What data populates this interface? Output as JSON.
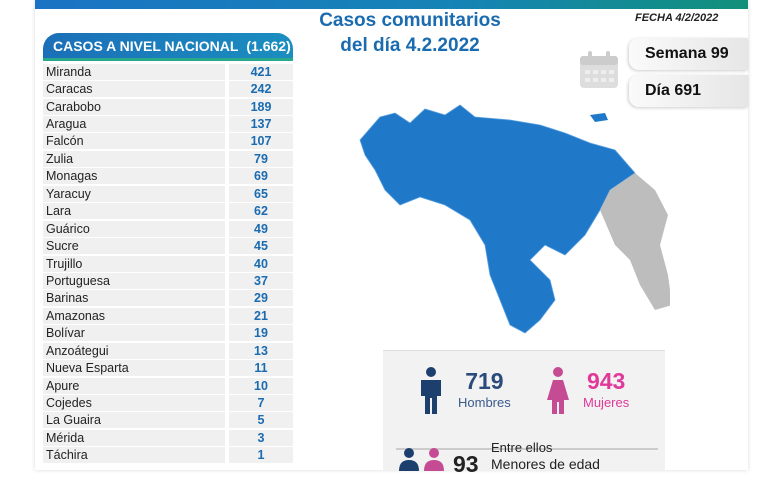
{
  "table": {
    "title": "CASOS A NIVEL NACIONAL",
    "total": "(1.662)",
    "rows": [
      [
        "Miranda",
        "421"
      ],
      [
        "Caracas",
        "242"
      ],
      [
        "Carabobo",
        "189"
      ],
      [
        "Aragua",
        "137"
      ],
      [
        "Falcón",
        "107"
      ],
      [
        "Zulia",
        "79"
      ],
      [
        "Monagas",
        "69"
      ],
      [
        "Yaracuy",
        "65"
      ],
      [
        "Lara",
        "62"
      ],
      [
        "Guárico",
        "49"
      ],
      [
        "Sucre",
        "45"
      ],
      [
        "Trujillo",
        "40"
      ],
      [
        "Portuguesa",
        "37"
      ],
      [
        "Barinas",
        "29"
      ],
      [
        "Amazonas",
        "21"
      ],
      [
        "Bolívar",
        "19"
      ],
      [
        "Anzoátegui",
        "13"
      ],
      [
        "Nueva Esparta",
        "11"
      ],
      [
        "Apure",
        "10"
      ],
      [
        "Cojedes",
        "7"
      ],
      [
        "La Guaira",
        "5"
      ],
      [
        "Mérida",
        "3"
      ],
      [
        "Táchira",
        "1"
      ]
    ]
  },
  "title": {
    "line1": "Casos comunitarios",
    "line2": "del día 4.2.2022"
  },
  "fecha": "FECHA 4/2/2022",
  "semana": "Semana 99",
  "dia": "Día 691",
  "stats": {
    "hombres": "719",
    "hombres_label": "Hombres",
    "mujeres": "943",
    "mujeres_label": "Mujeres",
    "entre": "Entre ellos",
    "menores": "93",
    "menores_label": "Menores de edad"
  },
  "colors": {
    "blue": "#1a6bb0",
    "map": "#1f78c8",
    "pink": "#d94aa0",
    "navy": "#1d3f6e"
  }
}
